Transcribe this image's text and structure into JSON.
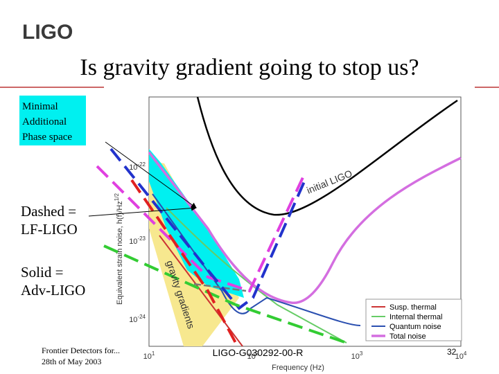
{
  "logo": "LIGO",
  "title": "Is gravity gradient going to stop us?",
  "note_box": [
    "Minimal",
    "Additional",
    "Phase space"
  ],
  "dashed_note": [
    "Dashed =",
    "LF-LIGO"
  ],
  "solid_note": [
    "Solid =",
    "Adv-LIGO"
  ],
  "chart": {
    "y_label": "Equivalent strain noise, h(f)/Hz",
    "y_label_exp": "1/2",
    "x_label": "Frequency (Hz)",
    "yticks": [
      {
        "base": "10",
        "exp": "-22"
      },
      {
        "base": "10",
        "exp": "-23"
      },
      {
        "base": "10",
        "exp": "-24"
      }
    ],
    "xticks": [
      {
        "base": "10",
        "exp": "1"
      },
      {
        "base": "10",
        "exp": "2"
      },
      {
        "base": "10",
        "exp": "3"
      },
      {
        "base": "10",
        "exp": "4"
      }
    ],
    "annotations": [
      "initial LIGO",
      "gravity gradients"
    ],
    "legend": [
      "Susp. thermal",
      "Internal thermal",
      "Quantum noise",
      "Total noise"
    ]
  },
  "footer": {
    "left": [
      "Frontier Detectors for...",
      "28th of May 2003"
    ],
    "center": "LIGO-G030292-00-R",
    "page": "32"
  }
}
